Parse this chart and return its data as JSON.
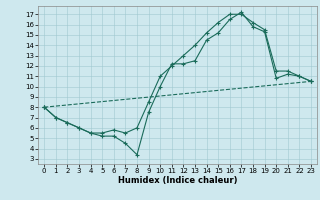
{
  "xlabel": "Humidex (Indice chaleur)",
  "bg_color": "#cee8ee",
  "line_color": "#1a6b5a",
  "xlim": [
    -0.5,
    23.5
  ],
  "ylim": [
    2.5,
    17.8
  ],
  "xticks": [
    0,
    1,
    2,
    3,
    4,
    5,
    6,
    7,
    8,
    9,
    10,
    11,
    12,
    13,
    14,
    15,
    16,
    17,
    18,
    19,
    20,
    21,
    22,
    23
  ],
  "yticks": [
    3,
    4,
    5,
    6,
    7,
    8,
    9,
    10,
    11,
    12,
    13,
    14,
    15,
    16,
    17
  ],
  "line1_x": [
    0,
    1,
    2,
    3,
    4,
    5,
    6,
    7,
    8,
    9,
    10,
    11,
    12,
    13,
    14,
    15,
    16,
    17,
    18,
    19,
    20,
    21,
    22,
    23
  ],
  "line1_y": [
    8,
    7,
    6.5,
    6.0,
    5.5,
    5.2,
    5.2,
    4.5,
    3.4,
    7.5,
    10.0,
    12.2,
    12.2,
    12.5,
    14.5,
    15.2,
    16.5,
    17.2,
    15.8,
    15.3,
    10.8,
    11.2,
    11.0,
    10.5
  ],
  "line2_x": [
    0,
    1,
    2,
    3,
    4,
    5,
    6,
    7,
    8,
    9,
    10,
    11,
    12,
    13,
    14,
    15,
    16,
    17,
    18,
    19,
    20,
    21,
    22,
    23
  ],
  "line2_y": [
    8,
    7,
    6.5,
    6.0,
    5.5,
    5.5,
    5.8,
    5.5,
    6.0,
    8.5,
    11.0,
    12.0,
    13.0,
    14.0,
    15.2,
    16.2,
    17.0,
    17.0,
    16.2,
    15.5,
    11.5,
    11.5,
    11.0,
    10.5
  ],
  "line3_x": [
    0,
    23
  ],
  "line3_y": [
    8.0,
    10.5
  ]
}
